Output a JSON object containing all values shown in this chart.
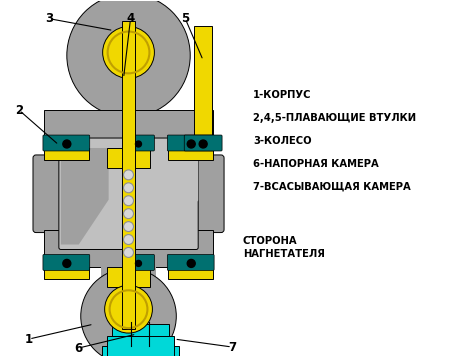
{
  "background_color": "#ffffff",
  "legend_items": [
    "1-КОРПУС",
    "2,4,5-ПЛАВАЮЩИЕ ВТУЛКИ",
    "3-КОЛЕСО",
    "6-НАПОРНАЯ КАМЕРА",
    "7-ВСАСЫВАЮЩАЯ КАМЕРА"
  ],
  "side_label": "СТОРОНА\nНАГНЕТАТЕЛЯ",
  "colors": {
    "gray_body": "#a0a0a0",
    "yellow": "#f0d800",
    "teal": "#00d8d8",
    "dark_teal": "#007070",
    "black": "#000000",
    "white": "#ffffff",
    "light_gray": "#c0c0c0",
    "mid_gray": "#909090"
  },
  "figsize": [
    4.74,
    3.57
  ],
  "dpi": 100
}
